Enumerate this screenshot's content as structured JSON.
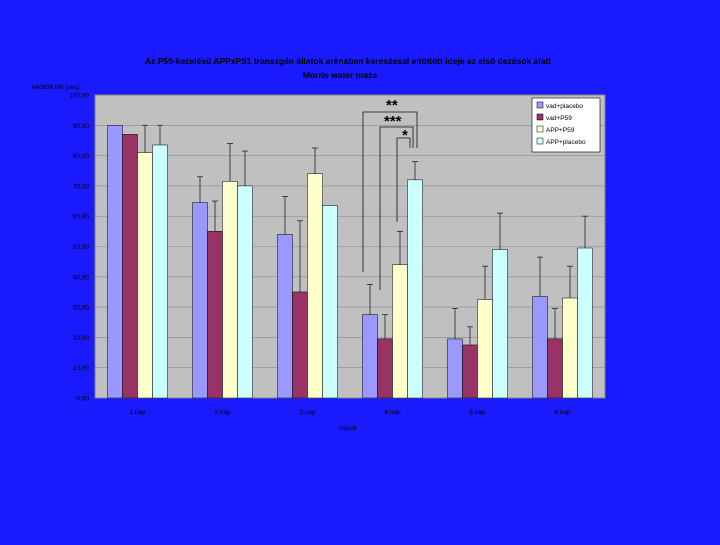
{
  "colors": {
    "page_background": "#1a1aff",
    "plot_background": "#c0c0c0",
    "bar_outline": "#000000",
    "error_bar": "#222222",
    "title_text": "#000000",
    "bracket": "#111111"
  },
  "chart_data": {
    "type": "bar",
    "title": "Az P59-kezelésű APPxPS1 transzgén állatok arénában keresással eltöltött ideje az első úszások alatt",
    "subtitle": "Morris water maze",
    "ylabel": "eltöltött idő (sec)",
    "xlabel": "napok",
    "ylim": [
      0,
      100
    ],
    "yticks": [
      "0,00",
      "10,00",
      "20,00",
      "30,00",
      "40,00",
      "50,00",
      "60,00",
      "70,00",
      "80,00",
      "90,00",
      "100,00"
    ],
    "categories": [
      "1.nap",
      "2.nap",
      "3.nap",
      "4.nap",
      "5.nap",
      "6.nap"
    ],
    "series": [
      {
        "name": "vad+placebo",
        "color": "#9999ff",
        "values": [
          90,
          64.5,
          54,
          27.5,
          19.5,
          33.5
        ],
        "errors": [
          0,
          8.5,
          12.5,
          10,
          10,
          13
        ]
      },
      {
        "name": "vad+P59",
        "color": "#993366",
        "values": [
          87,
          55,
          35,
          19.5,
          17.5,
          19.5
        ],
        "errors": [
          0,
          10,
          23.5,
          8,
          6,
          10
        ]
      },
      {
        "name": "APP+P59",
        "color": "#ffffcc",
        "values": [
          81,
          71.5,
          74,
          44,
          32.5,
          33
        ],
        "errors": [
          9,
          12.5,
          8.5,
          11,
          11,
          10.5
        ]
      },
      {
        "name": "APP+placebo",
        "color": "#ccffff",
        "values": [
          83.5,
          70,
          63.5,
          72,
          49,
          49.5
        ],
        "errors": [
          6.5,
          11.5,
          0,
          6,
          12,
          10.5
        ]
      }
    ],
    "grid": true,
    "legend_position": "top-right",
    "annotations": [
      "**",
      "***",
      "*"
    ]
  }
}
